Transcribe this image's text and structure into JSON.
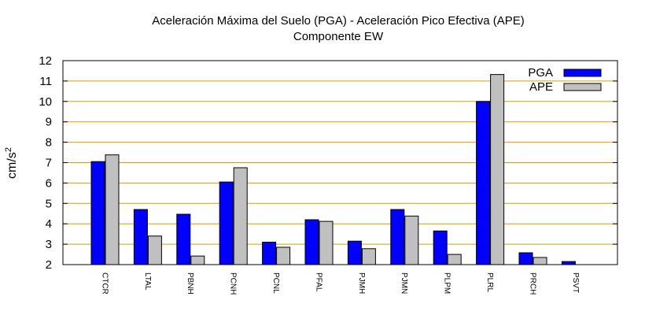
{
  "chart_data": {
    "type": "bar",
    "title_line1": "Aceleración Máxima del Suelo (PGA) -  Aceleración Pico Efectiva (APE)",
    "title_line2": "Componente EW",
    "xlabel": "",
    "ylabel": "cm/s",
    "ylabel_sup": "2",
    "ylim": [
      2,
      12
    ],
    "yticks": [
      2,
      3,
      4,
      5,
      6,
      7,
      8,
      9,
      10,
      11,
      12
    ],
    "grid": "horizontal",
    "legend_position": "top-right",
    "categories": [
      "CTCR",
      "LTAL",
      "PBNH",
      "PCNH",
      "PCNL",
      "PFAL",
      "PJMH",
      "PJMN",
      "PLPM",
      "PLRL",
      "PRCH",
      "PSVT"
    ],
    "series": [
      {
        "name": "PGA",
        "color": "#0000ff",
        "values": [
          7.05,
          4.7,
          4.47,
          6.05,
          3.1,
          4.2,
          3.15,
          4.7,
          3.65,
          10.0,
          2.58,
          2.15
        ]
      },
      {
        "name": "APE",
        "color": "#c0c0c0",
        "values": [
          7.38,
          3.4,
          2.42,
          6.75,
          2.85,
          4.12,
          2.78,
          4.38,
          2.5,
          11.32,
          2.35,
          null
        ]
      }
    ],
    "grid_color": "#d4a100"
  }
}
